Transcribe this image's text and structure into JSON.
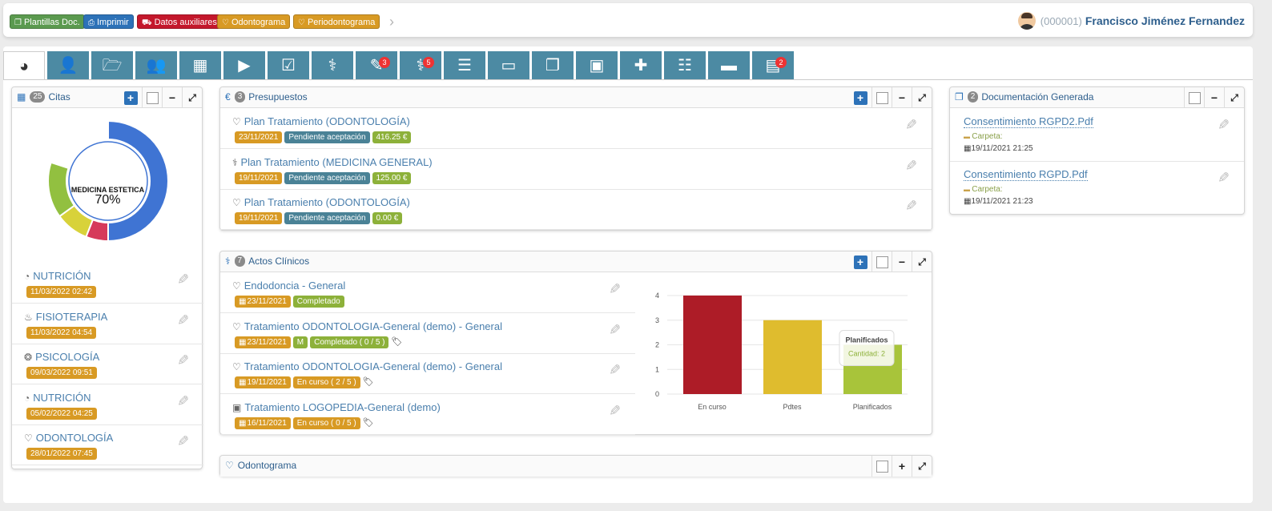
{
  "toolbar": {
    "buttons": [
      {
        "label": "Plantillas Doc.",
        "color": "#5b9a4f",
        "icon": "copy-icon"
      },
      {
        "label": "Imprimir",
        "color": "#2d72b8",
        "icon": "print-icon"
      },
      {
        "label": "Datos auxiliares",
        "color": "#c4182c",
        "icon": "car-icon"
      },
      {
        "label": "Odontograma",
        "color": "#d89a24",
        "icon": "tooth-icon"
      },
      {
        "label": "Periodontograma",
        "color": "#d89a24",
        "icon": "tooth-icon"
      }
    ]
  },
  "patient": {
    "id": "(000001)",
    "name": "Francisco Jiménez Fernandez"
  },
  "tabs": [
    {
      "icon": "dashboard-icon",
      "active": true
    },
    {
      "icon": "user-icon"
    },
    {
      "icon": "folder-open-icon"
    },
    {
      "icon": "users-icon"
    },
    {
      "icon": "calendar-icon"
    },
    {
      "icon": "video-icon"
    },
    {
      "icon": "checkbox-icon"
    },
    {
      "icon": "doctor-icon"
    },
    {
      "icon": "edit-icon",
      "badge": "3"
    },
    {
      "icon": "stethoscope-icon",
      "badge": "5"
    },
    {
      "icon": "list-icon"
    },
    {
      "icon": "credit-card-icon"
    },
    {
      "icon": "documents-icon"
    },
    {
      "icon": "money-icon"
    },
    {
      "icon": "medkit-icon"
    },
    {
      "icon": "list-alt-icon"
    },
    {
      "icon": "folder-icon"
    },
    {
      "icon": "clipboard-icon",
      "badge": "2"
    }
  ],
  "citas": {
    "count": "25",
    "title": "Citas",
    "donut": {
      "label": "MEDICINA ESTETICA",
      "percent": "70%"
    },
    "items": [
      {
        "label": "NUTRICIÓN",
        "date": "11/03/2022 02:42"
      },
      {
        "label": "FISIOTERAPIA",
        "date": "11/03/2022 04:54"
      },
      {
        "label": "PSICOLOGÍA",
        "date": "09/03/2022 09:51"
      },
      {
        "label": "NUTRICIÓN",
        "date": "05/02/2022 04:25"
      },
      {
        "label": "ODONTOLOGÍA",
        "date": "28/01/2022 07:45"
      }
    ]
  },
  "presupuestos": {
    "count": "3",
    "title": "Presupuestos",
    "items": [
      {
        "label": "Plan Tratamiento (ODONTOLOGÍA)",
        "date": "23/11/2021",
        "status": "Pendiente aceptación",
        "amount": "416.25 €"
      },
      {
        "label": "Plan Tratamiento (MEDICINA GENERAL)",
        "date": "19/11/2021",
        "status": "Pendiente aceptación",
        "amount": "125.00 €"
      },
      {
        "label": "Plan Tratamiento (ODONTOLOGÍA)",
        "date": "19/11/2021",
        "status": "Pendiente aceptación",
        "amount": "0.00 €"
      }
    ]
  },
  "actos": {
    "count": "7",
    "title": "Actos Clínicos",
    "items": [
      {
        "label": "Endodoncia - General",
        "date": "23/11/2021",
        "badges": [
          "Completado"
        ]
      },
      {
        "label": "Tratamiento ODONTOLOGIA-General (demo) - General",
        "date": "23/11/2021",
        "badges": [
          "M",
          "Completado ( 0 / 5 )"
        ]
      },
      {
        "label": "Tratamiento ODONTOLOGIA-General (demo) - General",
        "date": "19/11/2021",
        "badges": [
          "En curso ( 2 / 5 )"
        ]
      },
      {
        "label": "Tratamiento LOGOPEDIA-General (demo)",
        "date": "16/11/2021",
        "badges": [
          "En curso ( 0 / 5 )"
        ]
      }
    ]
  },
  "documentacion": {
    "count": "2",
    "title": "Documentación Generada",
    "carpeta_label": "Carpeta:",
    "items": [
      {
        "name": "Consentimiento RGPD2.Pdf",
        "date": "19/11/2021 21:25"
      },
      {
        "name": "Consentimiento RGPD.Pdf",
        "date": "19/11/2021 21:23"
      }
    ]
  },
  "odontograma": {
    "title": "Odontograma"
  },
  "colors": {
    "gold": "#d89a24",
    "teal": "#4a8296",
    "green": "#8db13a",
    "blue": "#2d72b8",
    "donut_blue": "#3f74d3",
    "donut_green": "#92c040",
    "donut_yellow": "#d8d23a",
    "donut_red": "#d63a5a"
  },
  "donut_data": {
    "segments": [
      0.5,
      0.06,
      0.09,
      0.15
    ]
  },
  "chart_data": {
    "type": "bar",
    "categories": [
      "En curso",
      "Pdtes",
      "Planificados"
    ],
    "values": [
      4,
      3,
      2
    ],
    "colors": [
      "#ad1c27",
      "#dfbc2e",
      "#a8c43a"
    ],
    "ylim": [
      0,
      4
    ],
    "yticks": [
      "0",
      "1",
      "2",
      "3",
      "4"
    ],
    "grid": true,
    "tooltip": {
      "title": "Planificados",
      "text": "Cantidad: 2"
    }
  }
}
